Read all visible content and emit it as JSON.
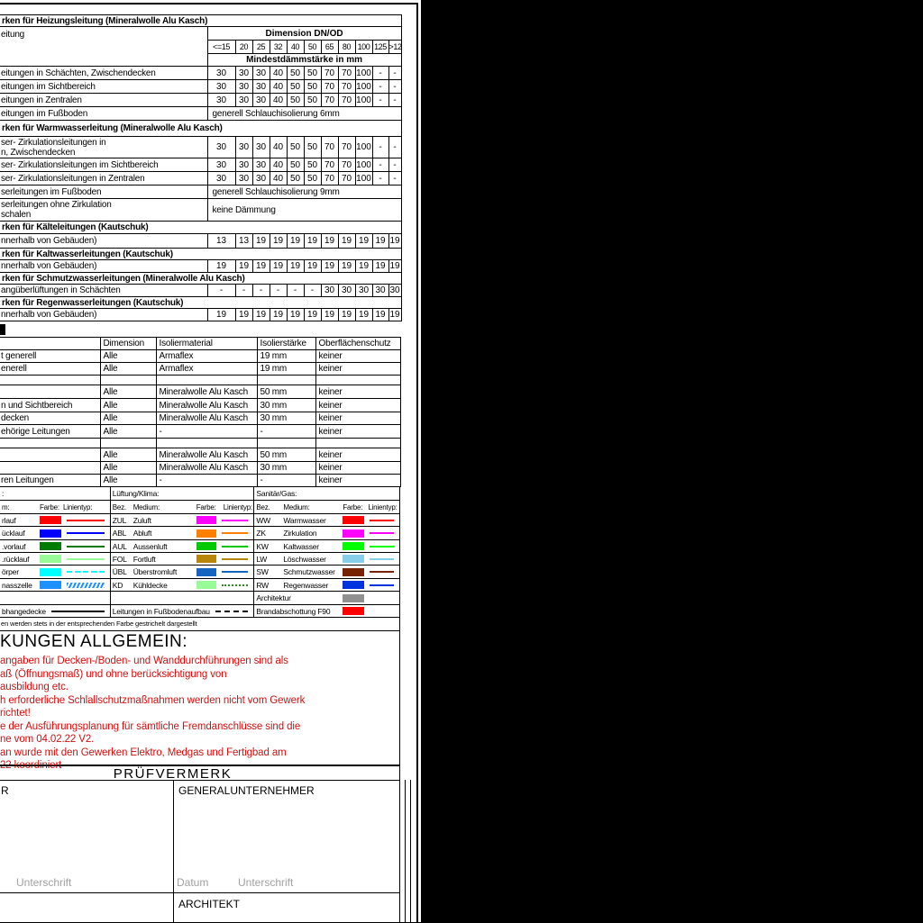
{
  "table_a": {
    "corner_label": "eitung",
    "dim_header": "Dimension DN/OD",
    "size_cols": [
      "<=15",
      "20",
      "25",
      "32",
      "40",
      "50",
      "65",
      "80",
      "100",
      "125",
      ">125"
    ],
    "mindest_header": "Mindestdämmstärke in mm",
    "rows": [
      {
        "t": "sec",
        "label": "rken für Heizungsleitung (Mineralwolle Alu Kasch)",
        "h": 13
      },
      {
        "t": "dimhdr"
      },
      {
        "t": "row",
        "label": "eitungen in Schächten, Zwischendecken",
        "vals": [
          "30",
          "30",
          "30",
          "40",
          "50",
          "50",
          "70",
          "70",
          "100",
          "-",
          "-"
        ],
        "h": 15
      },
      {
        "t": "row",
        "label": "eitungen im Sichtbereich",
        "vals": [
          "30",
          "30",
          "30",
          "40",
          "50",
          "50",
          "70",
          "70",
          "100",
          "-",
          "-"
        ],
        "h": 15
      },
      {
        "t": "row",
        "label": "eitungen in Zentralen",
        "vals": [
          "30",
          "30",
          "30",
          "40",
          "50",
          "50",
          "70",
          "70",
          "100",
          "-",
          "-"
        ],
        "h": 15
      },
      {
        "t": "span",
        "label": "eitungen im Fußboden",
        "val": "generell Schlauchisolierung 6mm",
        "h": 15
      },
      {
        "t": "sec",
        "label": "rken für Warmwasserleitung (Mineralwolle Alu Kasch)",
        "h": 18
      },
      {
        "t": "row",
        "label": "ser- Zirkulationsleitungen in\nn, Zwischendecken",
        "vals": [
          "30",
          "30",
          "30",
          "40",
          "50",
          "50",
          "70",
          "70",
          "100",
          "-",
          "-"
        ],
        "h": 24
      },
      {
        "t": "row",
        "label": "ser- Zirkulationsleitungen im Sichtbereich",
        "vals": [
          "30",
          "30",
          "30",
          "40",
          "50",
          "50",
          "70",
          "70",
          "100",
          "-",
          "-"
        ],
        "h": 15
      },
      {
        "t": "row",
        "label": "ser- Zirkulationsleitungen in Zentralen",
        "vals": [
          "30",
          "30",
          "30",
          "40",
          "50",
          "50",
          "70",
          "70",
          "100",
          "-",
          "-"
        ],
        "h": 15
      },
      {
        "t": "span",
        "label": "serleitungen im Fußboden",
        "val": "generell Schlauchisolierung 9mm",
        "h": 15
      },
      {
        "t": "span",
        "label": "serleitungen ohne Zirkulation\nschalen",
        "val": "keine Dämmung",
        "h": 25
      },
      {
        "t": "sec",
        "label": "rken für Kälteleitungen (Kautschuk)",
        "h": 14
      },
      {
        "t": "row",
        "label": "nnerhalb von Gebäuden)",
        "vals": [
          "13",
          "13",
          "19",
          "19",
          "19",
          "19",
          "19",
          "19",
          "19",
          "19",
          "19"
        ],
        "h": 16
      },
      {
        "t": "sec",
        "label": "rken für Kaltwasserleitungen (Kautschuk)",
        "h": 13
      },
      {
        "t": "row",
        "label": "nnerhalb von Gebäuden)",
        "vals": [
          "19",
          "19",
          "19",
          "19",
          "19",
          "19",
          "19",
          "19",
          "19",
          "19",
          "19"
        ],
        "h": 14
      },
      {
        "t": "sec",
        "label": "rken für Schmutzwasserleitungen (Mineralwolle Alu Kasch)",
        "h": 13
      },
      {
        "t": "row",
        "label": "angüberlüftungen in Schächten",
        "vals": [
          "-",
          "-",
          "-",
          "-",
          "-",
          "-",
          "30",
          "30",
          "30",
          "30",
          "30"
        ],
        "h": 14
      },
      {
        "t": "sec",
        "label": "rken für Regenwasserleitungen (Kautschuk)",
        "h": 13
      },
      {
        "t": "row",
        "label": "nnerhalb von Gebäuden)",
        "vals": [
          "19",
          "19",
          "19",
          "19",
          "19",
          "19",
          "19",
          "19",
          "19",
          "19",
          "19"
        ],
        "h": 14
      }
    ]
  },
  "table_b": {
    "header": [
      "",
      "Dimension",
      "Isoliermaterial",
      "Isolierstärke",
      "Oberflächenschutz"
    ],
    "rows": [
      [
        "t generell",
        "Alle",
        "Armaflex",
        "19 mm",
        "keiner"
      ],
      [
        "enerell",
        "Alle",
        "Armaflex",
        "19 mm",
        "keiner"
      ],
      [
        "",
        "",
        "",
        "",
        ""
      ],
      [
        "",
        "Alle",
        "Mineralwolle Alu Kasch",
        "50 mm",
        "keiner"
      ],
      [
        "n und Sichtbereich",
        "Alle",
        "Mineralwolle Alu Kasch",
        "30 mm",
        "keiner"
      ],
      [
        "decken",
        "Alle",
        "Mineralwolle Alu Kasch",
        "30 mm",
        "keiner"
      ],
      [
        "ehörige Leitungen",
        "Alle",
        "-",
        "-",
        "keiner"
      ],
      [
        "",
        "",
        "",
        "",
        ""
      ],
      [
        "",
        "Alle",
        "Mineralwolle Alu Kasch",
        "50 mm",
        "keiner"
      ],
      [
        "",
        "Alle",
        "Mineralwolle Alu Kasch",
        "30 mm",
        "keiner"
      ],
      [
        "ren Leitungen",
        "Alle",
        "-",
        "-",
        "keiner"
      ]
    ]
  },
  "legend": {
    "groups": [
      {
        "title": ":",
        "cols": [
          "m:",
          "Farbe:",
          "Linientyp:"
        ],
        "rows": [
          {
            "med": "rlauf",
            "color": "#FF0000",
            "lt": "solid"
          },
          {
            "med": "ücklauf",
            "color": "#0000FF",
            "lt": "solid"
          },
          {
            "med": ".vorlauf",
            "color": "#007A00",
            "lt": "solid"
          },
          {
            "med": ".rücklauf",
            "color": "#98FB98",
            "lt": "solid"
          },
          {
            "med": "örper",
            "color": "#00FFFF",
            "lt": "dashed"
          },
          {
            "med": "nasszelle",
            "color": "#1E90FF",
            "lt": "hatch"
          }
        ],
        "row8": null,
        "row9": {
          "label": "bhangedecke",
          "lt": "solid",
          "lc": "#000000"
        }
      },
      {
        "title": "Lüftung/Klima:",
        "cols": [
          "Bez.",
          "Medium:",
          "Farbe:",
          "Linientyp:"
        ],
        "rows": [
          {
            "bez": "ZUL",
            "med": "Zuluft",
            "color": "#FF00FF",
            "lt": "solid"
          },
          {
            "bez": "ABL",
            "med": "Abluft",
            "color": "#FF8000",
            "lt": "solid"
          },
          {
            "bez": "AUL",
            "med": "Aussenluft",
            "color": "#00C800",
            "lt": "solid"
          },
          {
            "bez": "FOL",
            "med": "Fortluft",
            "color": "#B8860B",
            "lt": "solid"
          },
          {
            "bez": "ÜBL",
            "med": "Überstromluft",
            "color": "#1565C0",
            "lt": "solid"
          },
          {
            "bez": "KD",
            "med": "Kühldecke",
            "color": "#98FB98",
            "lt": "dotted",
            "lc": "#2E8B22"
          }
        ],
        "row8": null,
        "row9": {
          "label": "Leitungen in Fußbodenaufbau",
          "lt": "dashed",
          "lc": "#000000"
        }
      },
      {
        "title": "Sanitär/Gas:",
        "cols": [
          "Bez.",
          "Medium:",
          "Farbe:",
          "Linientyp:"
        ],
        "rows": [
          {
            "bez": "WW",
            "med": "Warmwasser",
            "color": "#FF0000",
            "lt": "solid"
          },
          {
            "bez": "ZK",
            "med": "Zirkulation",
            "color": "#FF00FF",
            "lt": "solid"
          },
          {
            "bez": "KW",
            "med": "Kaltwasser",
            "color": "#00FF00",
            "lt": "solid"
          },
          {
            "bez": "LW",
            "med": "Löschwasser",
            "color": "#87CEEB",
            "lt": "solid"
          },
          {
            "bez": "SW",
            "med": "Schmutzwasser",
            "color": "#772200",
            "lt": "solid"
          },
          {
            "bez": "RW",
            "med": "Regenwasser",
            "color": "#0033DD",
            "lt": "solid"
          }
        ],
        "row8": {
          "label": "Architektur",
          "color": "#909090"
        },
        "row9": {
          "label": "Brandabschottung F90",
          "color": "#FF0000"
        }
      }
    ],
    "note": "en werden stets in der entsprechenden Farbe gestrichelt dargestellt"
  },
  "anmerkungen": {
    "title": "KUNGEN ALLGEMEIN:",
    "color": "#CC1111",
    "lines": [
      "angaben für Decken-/Boden- und Wanddurchführungen sind   als",
      "aß (Öffnungsmaß) und ohne berücksichtigung von",
      "ausbildung etc.",
      "h erforderliche Schlallschutzmaßnahmen werden nicht vom Gewerk",
      "richtet!",
      "e der Ausführungsplanung für sämtliche Fremdanschlüsse sind die",
      "ne vom 04.02.22 V2.",
      "an wurde mit den Gewerken Elektro, Medgas und Fertigbad am",
      "22 koordiniert"
    ]
  },
  "pruefvermerk": {
    "title": "PRÜFVERMERK",
    "left_label": "R",
    "gu_label": "GENERALUNTERNEHMER",
    "architekt_label": "ARCHITEKT",
    "unterschrift": "Unterschrift",
    "datum": "Datum",
    "label_color": "#A0A0A0"
  }
}
